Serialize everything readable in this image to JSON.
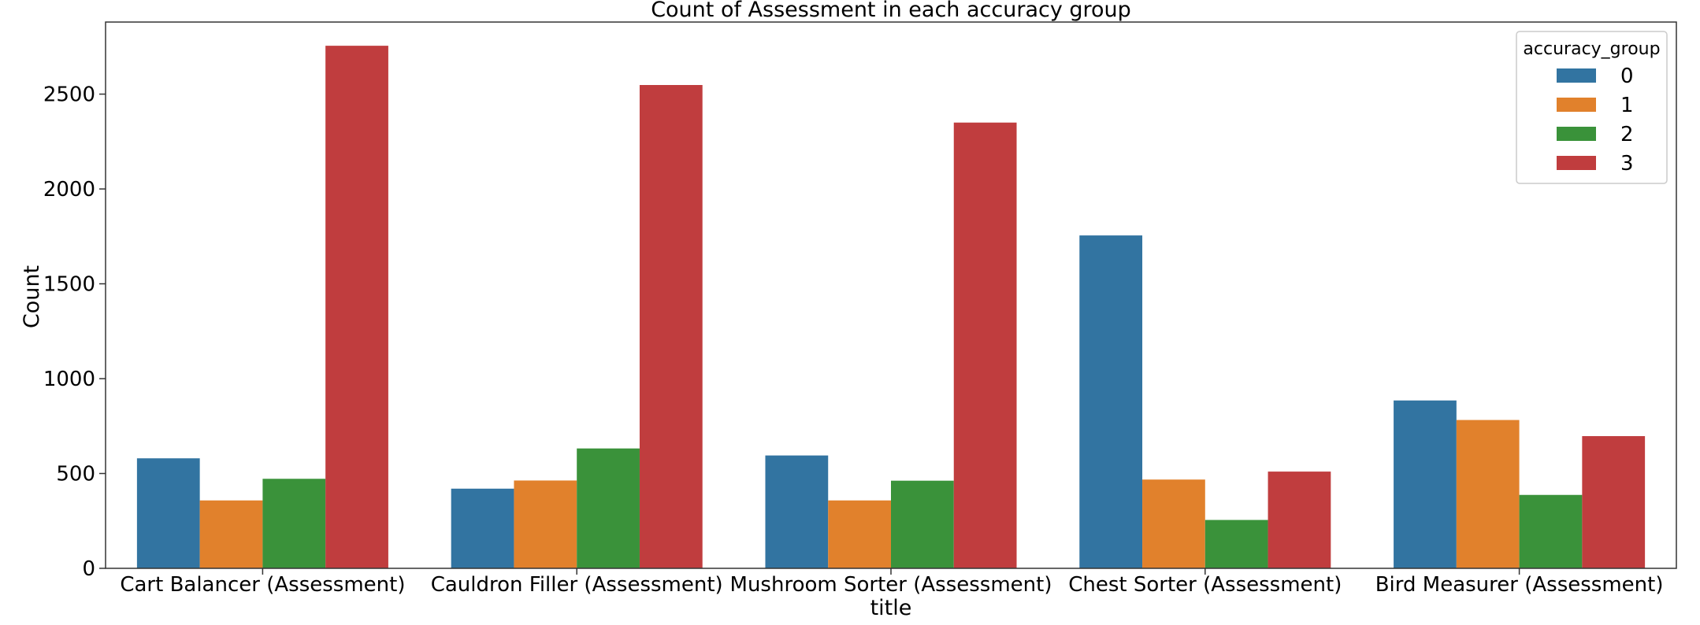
{
  "chart_data": {
    "type": "bar",
    "title": "Count of Assessment in each accuracy group",
    "xlabel": "title",
    "ylabel": "Count",
    "categories": [
      "Cart Balancer (Assessment)",
      "Cauldron Filler (Assessment)",
      "Mushroom Sorter (Assessment)",
      "Chest Sorter (Assessment)",
      "Bird Measurer (Assessment)"
    ],
    "legend_title": "accuracy_group",
    "legend_position": "top-right",
    "series": [
      {
        "name": "0",
        "color": "#3274a1",
        "values": [
          580,
          420,
          595,
          1755,
          885
        ]
      },
      {
        "name": "1",
        "color": "#e1812c",
        "values": [
          358,
          463,
          358,
          468,
          782
        ]
      },
      {
        "name": "2",
        "color": "#3a923a",
        "values": [
          472,
          632,
          462,
          255,
          387
        ]
      },
      {
        "name": "3",
        "color": "#c03d3e",
        "values": [
          2755,
          2548,
          2350,
          510,
          697
        ]
      }
    ],
    "ylim": [
      0,
      2880
    ],
    "yticks": [
      0,
      500,
      1000,
      1500,
      2000,
      2500
    ],
    "grid": false
  }
}
